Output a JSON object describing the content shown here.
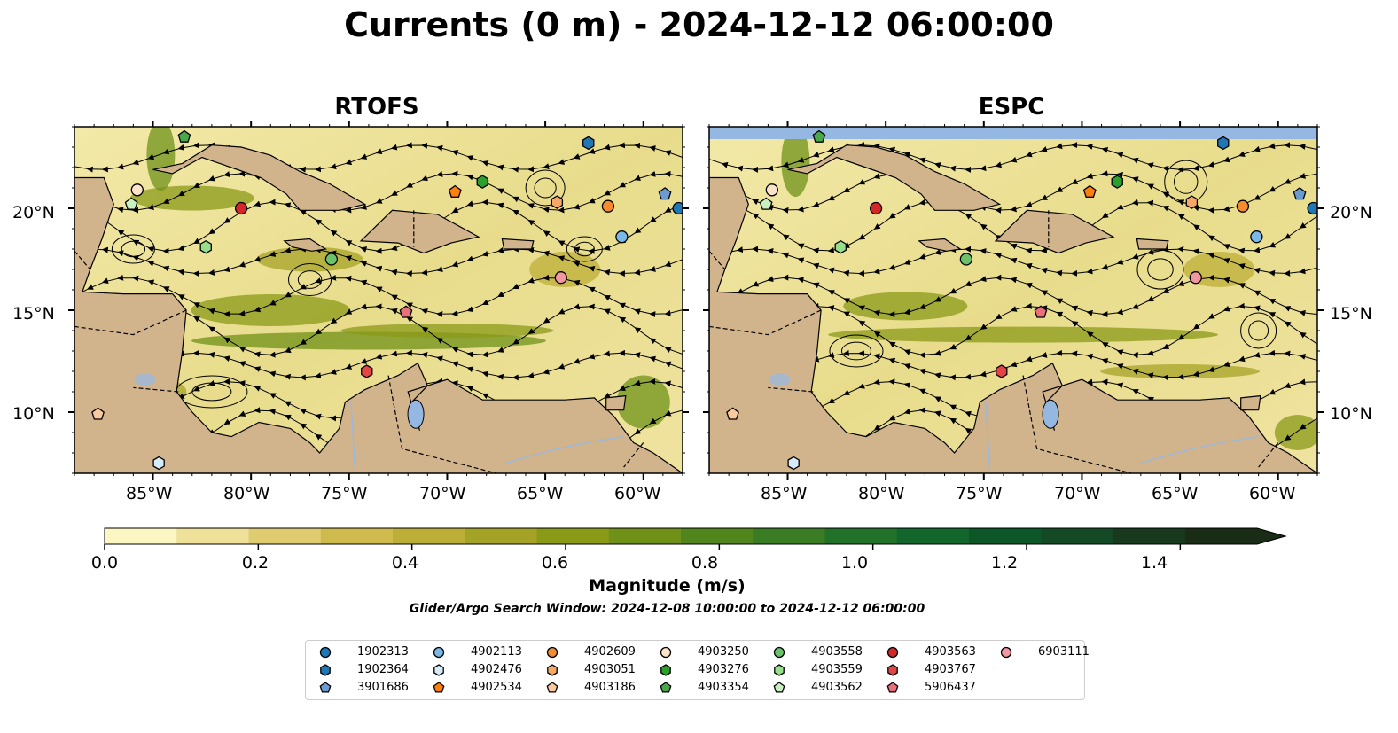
{
  "title": "Currents (0 m) - 2024-12-12 06:00:00",
  "panels": [
    {
      "title": "RTOFS"
    },
    {
      "title": "ESPC"
    }
  ],
  "lon_ticks": [
    "85°W",
    "80°W",
    "75°W",
    "70°W",
    "65°W",
    "60°W"
  ],
  "lat_ticks": [
    "20°N",
    "15°N",
    "10°N"
  ],
  "map_extent": {
    "lon": [
      -89,
      -58
    ],
    "lat": [
      7,
      24
    ]
  },
  "colorbar": {
    "label": "Magnitude (m/s)",
    "range": [
      0.0,
      1.5
    ],
    "extend": "max",
    "ticks": [
      "0.0",
      "0.2",
      "0.4",
      "0.6",
      "0.8",
      "1.0",
      "1.2",
      "1.4"
    ],
    "colors": [
      "#fbf6c2",
      "#efe09a",
      "#e0cc70",
      "#cfba4e",
      "#bcae36",
      "#a5a325",
      "#8a9a17",
      "#6f9118",
      "#52861d",
      "#3a7c24",
      "#217128",
      "#12662b",
      "#0d5628",
      "#134a25",
      "#18391e",
      "#192c16"
    ]
  },
  "search_window": "Glider/Argo Search Window: 2024-12-08 10:00:00 to 2024-12-12 06:00:00",
  "land_color": "#d2b48c",
  "water_color": "#95b8e3",
  "floats": [
    {
      "id": "1902313",
      "marker": "circle",
      "color": "#1f77b4",
      "lon": -58.2,
      "lat": 20.0
    },
    {
      "id": "1902364",
      "marker": "hexagon",
      "color": "#1f77b4",
      "lon": -62.8,
      "lat": 23.2
    },
    {
      "id": "3901686",
      "marker": "pentagon",
      "color": "#6b9bd1",
      "lon": -58.9,
      "lat": 20.7
    },
    {
      "id": "4902113",
      "marker": "circle",
      "color": "#7ab8e8",
      "lon": -61.1,
      "lat": 18.6
    },
    {
      "id": "4902476",
      "marker": "hexagon",
      "color": "#d6ecfb",
      "lon": -84.7,
      "lat": 7.5
    },
    {
      "id": "4902534",
      "marker": "pentagon",
      "color": "#ff7f0e",
      "lon": -69.6,
      "lat": 20.8
    },
    {
      "id": "4902609",
      "marker": "circle",
      "color": "#f58b2f",
      "lon": -61.8,
      "lat": 20.1
    },
    {
      "id": "4903051",
      "marker": "hexagon",
      "color": "#f7a866",
      "lon": -64.4,
      "lat": 20.3
    },
    {
      "id": "4903186",
      "marker": "pentagon",
      "color": "#fbc9a0",
      "lon": -87.8,
      "lat": 9.9
    },
    {
      "id": "4903250",
      "marker": "circle",
      "color": "#fde3c9",
      "lon": -85.8,
      "lat": 20.9
    },
    {
      "id": "4903276",
      "marker": "hexagon",
      "color": "#2ca02c",
      "lon": -68.2,
      "lat": 21.3
    },
    {
      "id": "4903354",
      "marker": "pentagon",
      "color": "#4aa84a",
      "lon": -83.4,
      "lat": 23.5
    },
    {
      "id": "4903558",
      "marker": "circle",
      "color": "#6cc26c",
      "lon": -75.9,
      "lat": 17.5
    },
    {
      "id": "4903559",
      "marker": "hexagon",
      "color": "#98df8a",
      "lon": -82.3,
      "lat": 18.1
    },
    {
      "id": "4903562",
      "marker": "pentagon",
      "color": "#c8f0c0",
      "lon": -86.1,
      "lat": 20.2
    },
    {
      "id": "4903563",
      "marker": "circle",
      "color": "#d62728",
      "lon": -80.5,
      "lat": 20.0
    },
    {
      "id": "4903767",
      "marker": "hexagon",
      "color": "#e34546",
      "lon": -74.1,
      "lat": 12.0
    },
    {
      "id": "5906437",
      "marker": "pentagon",
      "color": "#e8707a",
      "lon": -72.1,
      "lat": 14.9
    },
    {
      "id": "6903111",
      "marker": "circle",
      "color": "#f2979f",
      "lon": -64.2,
      "lat": 16.6
    }
  ]
}
